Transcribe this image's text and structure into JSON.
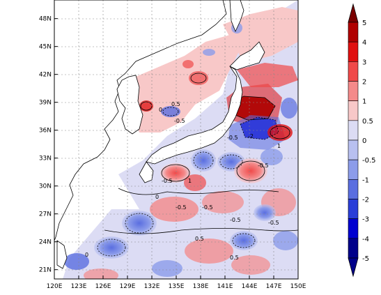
{
  "map": {
    "lon_ticks": [
      "120E",
      "123E",
      "126E",
      "129E",
      "132E",
      "135E",
      "138E",
      "141E",
      "144E",
      "147E",
      "150E"
    ],
    "lat_ticks": [
      "21N",
      "24N",
      "27N",
      "30N",
      "33N",
      "36N",
      "39N",
      "42N",
      "45N",
      "48N"
    ],
    "lon_range": [
      120,
      150
    ],
    "lat_range": [
      20,
      50
    ],
    "grid": "dotted",
    "contour_labels": [
      "0.5",
      "0",
      "-0.5",
      "-0.5",
      "-2",
      "1",
      "-0.5",
      "1",
      "-0.5",
      "-0.5",
      "0",
      "-0.5",
      "-0.5",
      "-0.5",
      "0",
      "0.5",
      "0.5"
    ]
  },
  "colorbar": {
    "labels": [
      "5",
      "4",
      "3",
      "2",
      "1",
      "0.5",
      "0",
      "-0.5",
      "-1",
      "-2",
      "-3",
      "-4",
      "-5"
    ],
    "colors": [
      "#7a0000",
      "#b00000",
      "#e01010",
      "#f04a4a",
      "#f48a8a",
      "#f8c8c8",
      "#dcdcf4",
      "#b8c0f0",
      "#8c9cea",
      "#5a6ee0",
      "#2a3ed8",
      "#0000d0",
      "#00008a"
    ],
    "placement": "right"
  }
}
